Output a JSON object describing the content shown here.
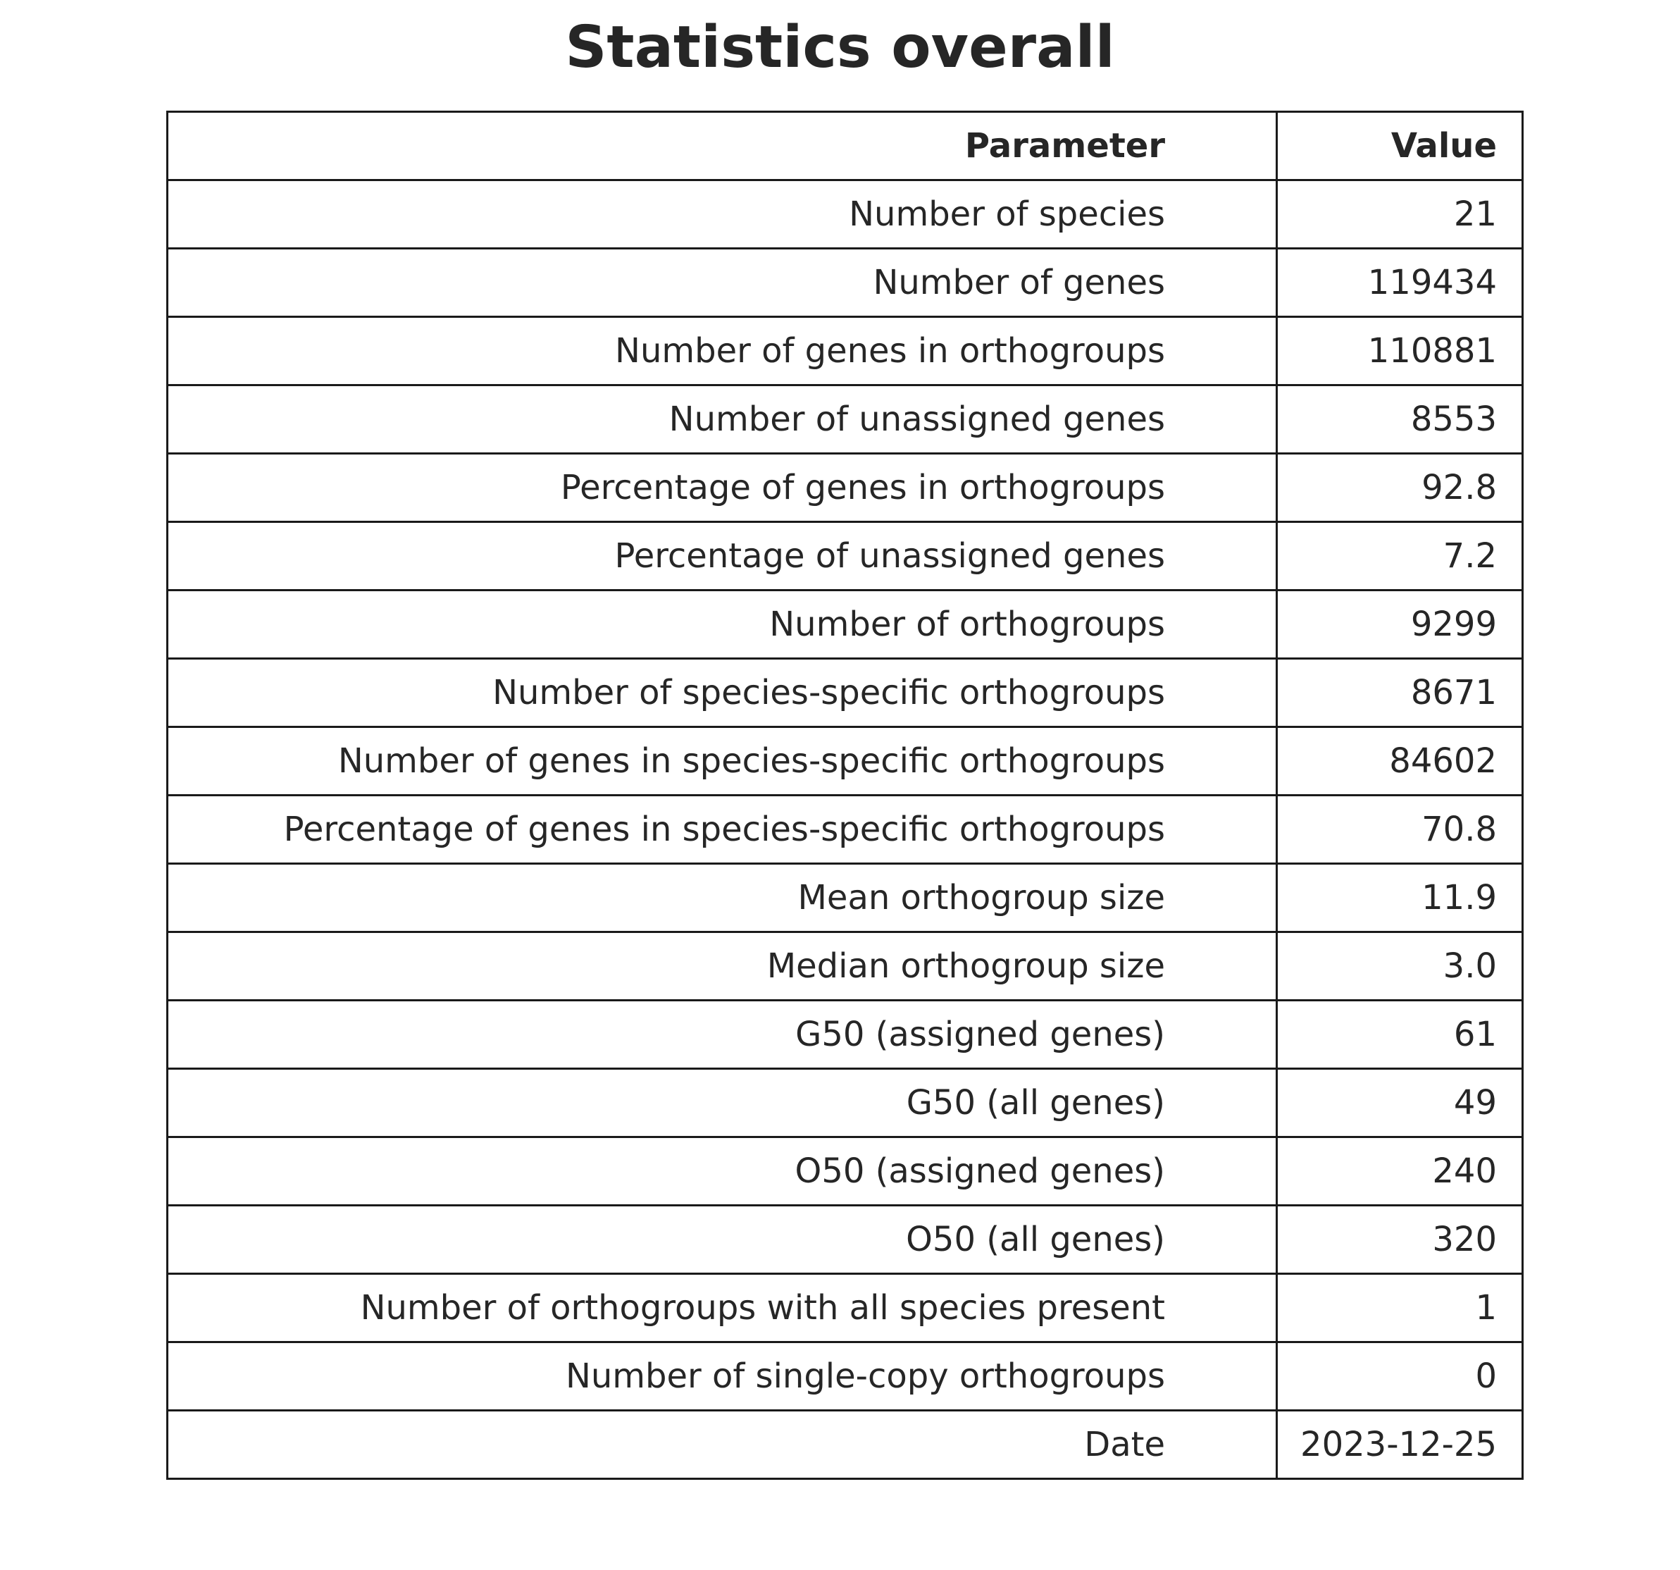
{
  "chart_data": {
    "type": "table",
    "title": "Statistics overall",
    "columns": [
      "Parameter",
      "Value"
    ],
    "rows": [
      [
        "Number of species",
        "21"
      ],
      [
        "Number of genes",
        "119434"
      ],
      [
        "Number of genes in orthogroups",
        "110881"
      ],
      [
        "Number of unassigned genes",
        "8553"
      ],
      [
        "Percentage of genes in orthogroups",
        "92.8"
      ],
      [
        "Percentage of unassigned genes",
        "7.2"
      ],
      [
        "Number of orthogroups",
        "9299"
      ],
      [
        "Number of species-specific orthogroups",
        "8671"
      ],
      [
        "Number of genes in species-specific orthogroups",
        "84602"
      ],
      [
        "Percentage of genes in species-specific orthogroups",
        "70.8"
      ],
      [
        "Mean orthogroup size",
        "11.9"
      ],
      [
        "Median orthogroup size",
        "3.0"
      ],
      [
        "G50 (assigned genes)",
        "61"
      ],
      [
        "G50 (all genes)",
        "49"
      ],
      [
        "O50 (assigned genes)",
        "240"
      ],
      [
        "O50 (all genes)",
        "320"
      ],
      [
        "Number of orthogroups with all species present",
        "1"
      ],
      [
        "Number of single-copy orthogroups",
        "0"
      ],
      [
        "Date",
        "2023-12-25"
      ]
    ]
  }
}
